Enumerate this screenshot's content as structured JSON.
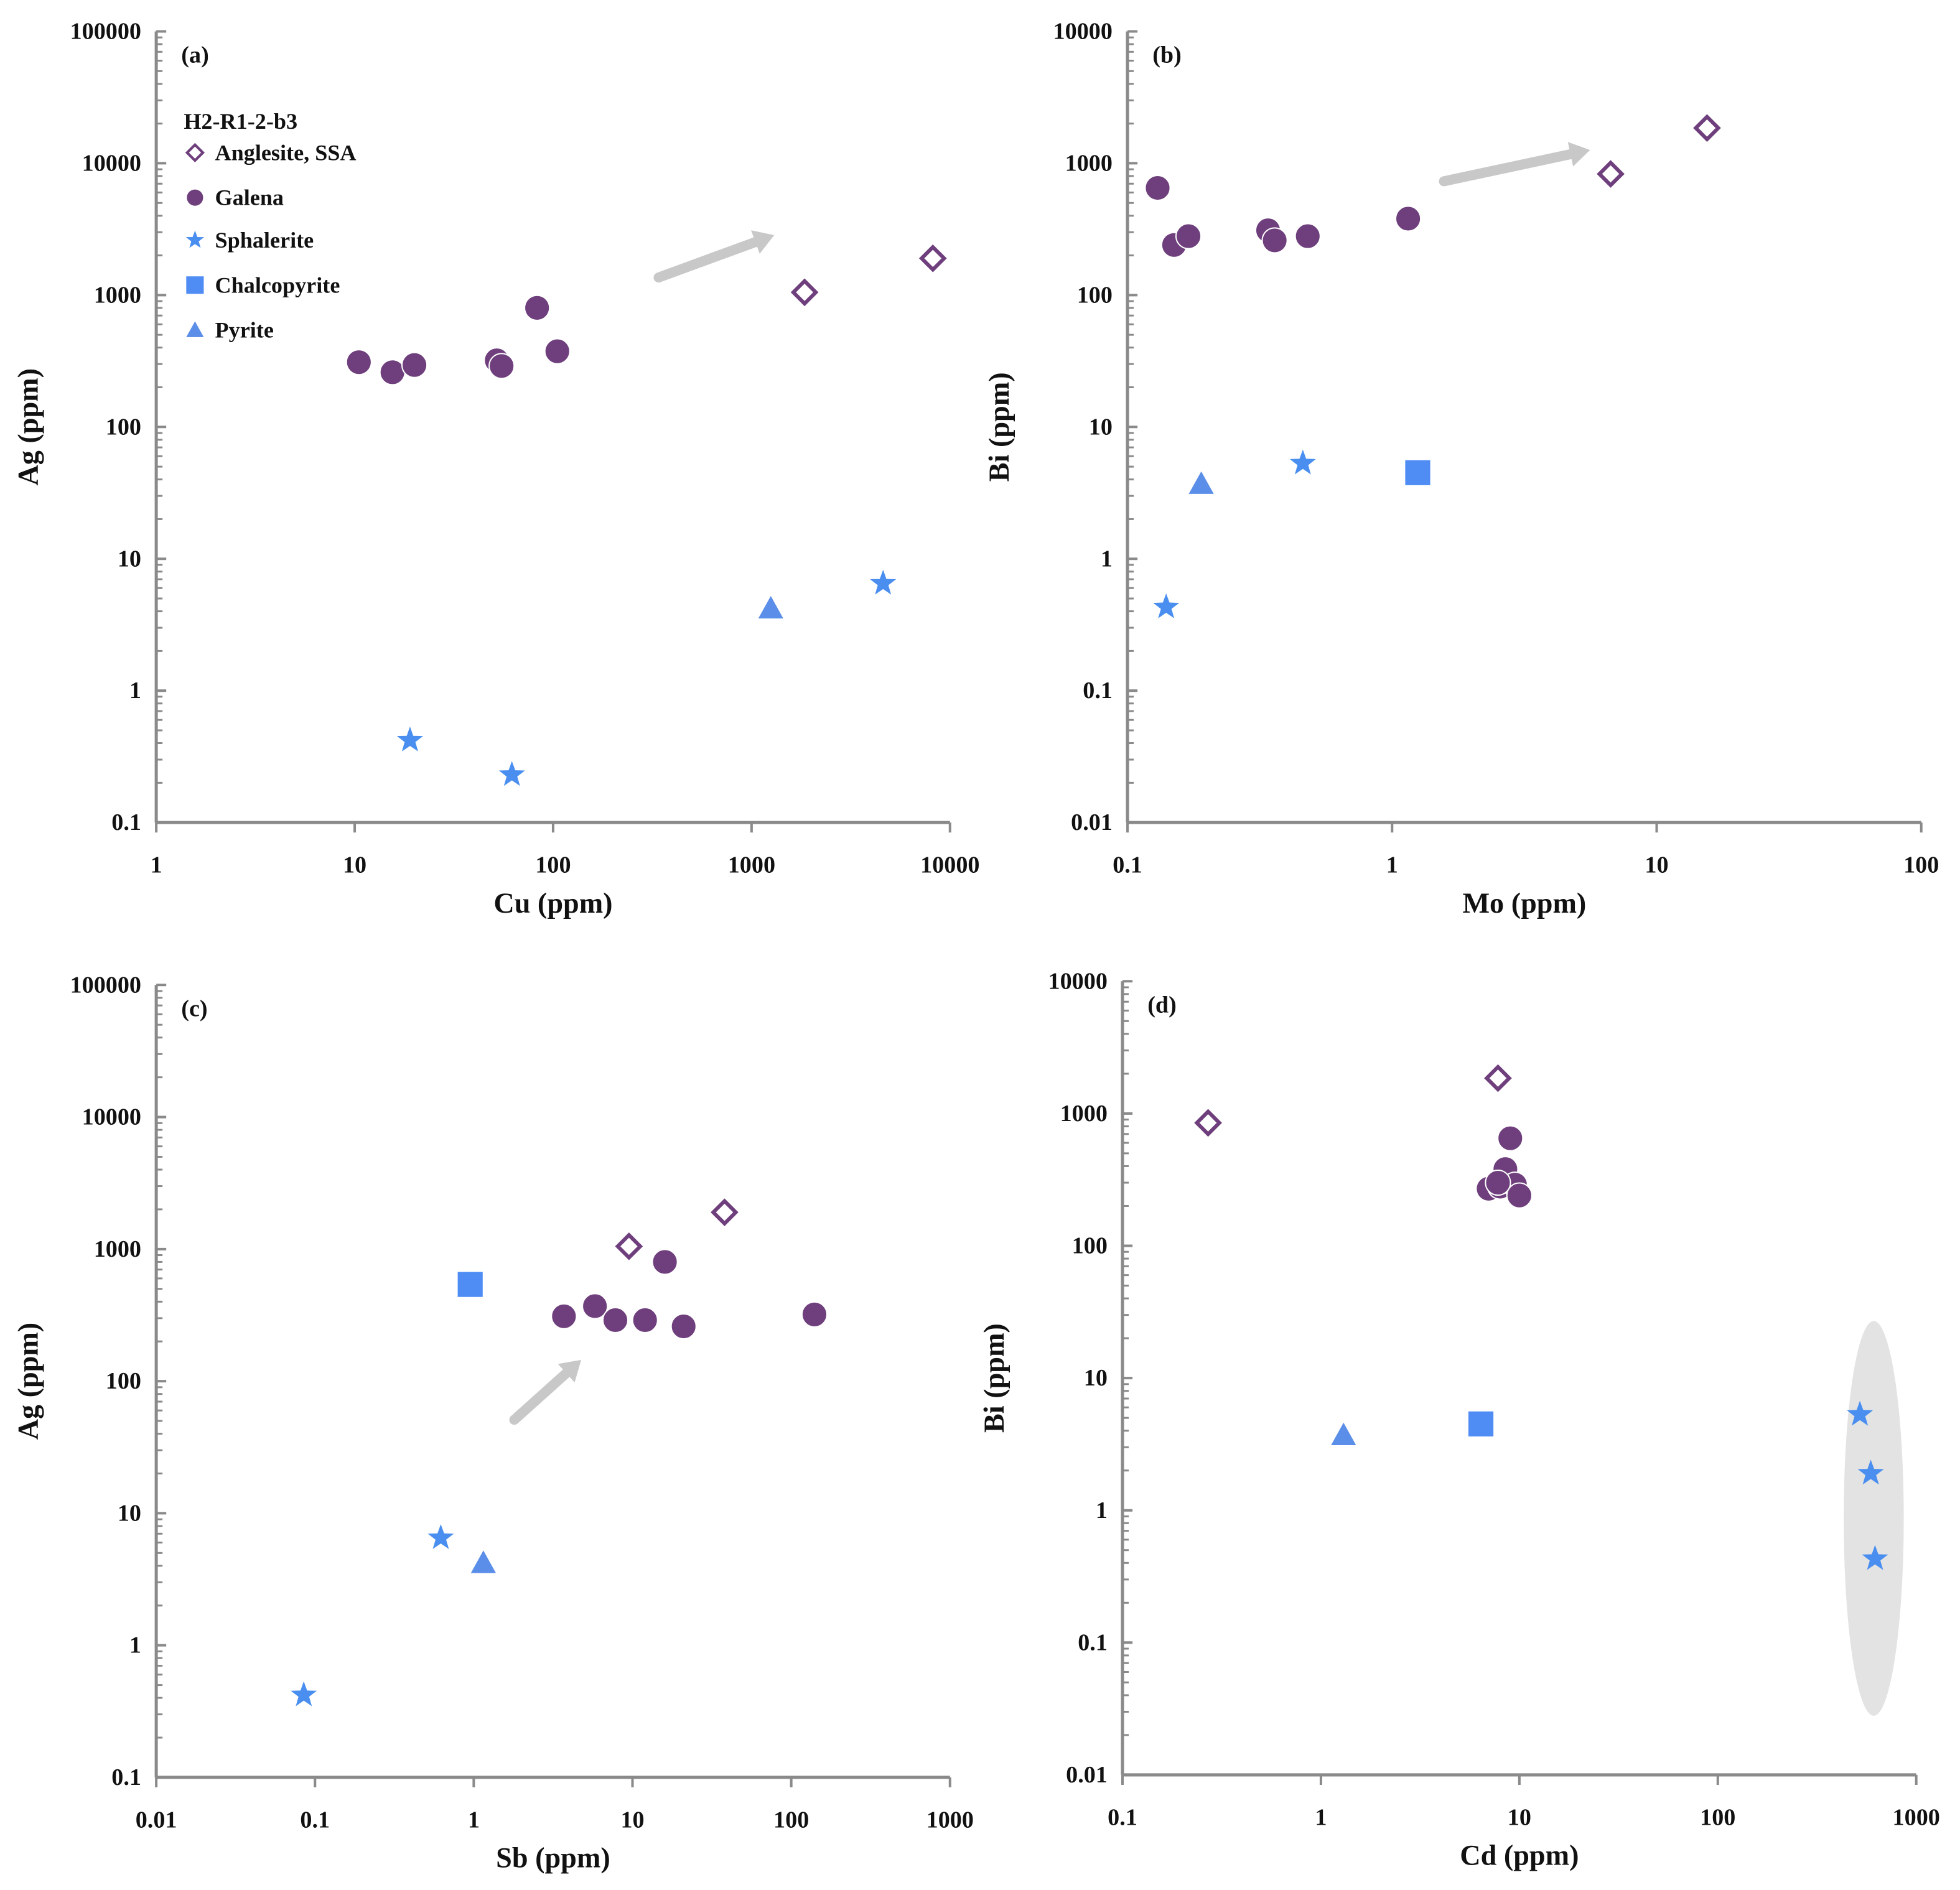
{
  "chart_data": [
    {
      "type": "scatter",
      "panel_label": "(a)",
      "xlabel": "Cu (ppm)",
      "ylabel": "Ag (ppm)",
      "xscale": "log",
      "yscale": "log",
      "xlim": [
        1,
        10000
      ],
      "ylim": [
        0.1,
        100000
      ],
      "xticks": [
        "1",
        "10",
        "100",
        "1000",
        "10000"
      ],
      "yticks": [
        "0.1",
        "1",
        "10",
        "100",
        "1000",
        "10000",
        "100000"
      ],
      "legend": {
        "title": "H2-R1-2-b3",
        "placement": "top-left",
        "entries": [
          "Anglesite, SSA",
          "Galena",
          "Sphalerite",
          "Chalcopyrite",
          "Pyrite"
        ]
      },
      "series": [
        {
          "name": "Anglesite, SSA",
          "marker": "diamond-open",
          "x": [
            1850,
            8200
          ],
          "y": [
            1050,
            1900
          ]
        },
        {
          "name": "Galena",
          "marker": "circle",
          "x": [
            10.5,
            15.5,
            20,
            52,
            55,
            83,
            105
          ],
          "y": [
            310,
            260,
            295,
            320,
            290,
            800,
            375
          ]
        },
        {
          "name": "Sphalerite",
          "marker": "star",
          "x": [
            19,
            62,
            4600
          ],
          "y": [
            0.42,
            0.23,
            6.5
          ]
        },
        {
          "name": "Chalcopyrite",
          "marker": "square",
          "x": [],
          "y": []
        },
        {
          "name": "Pyrite",
          "marker": "triangle",
          "x": [
            1250
          ],
          "y": [
            4.2
          ]
        }
      ],
      "annotations": [
        {
          "type": "arrow",
          "from": [
            340,
            1360
          ],
          "to": [
            1300,
            2850
          ]
        }
      ]
    },
    {
      "type": "scatter",
      "panel_label": "(b)",
      "xlabel": "Mo (ppm)",
      "ylabel": "Bi (ppm)",
      "xscale": "log",
      "yscale": "log",
      "xlim": [
        0.1,
        100
      ],
      "ylim": [
        0.01,
        10000
      ],
      "xticks": [
        "0.1",
        "1",
        "10",
        "100"
      ],
      "yticks": [
        "0.01",
        "0.1",
        "1",
        "10",
        "100",
        "1000",
        "10000"
      ],
      "series": [
        {
          "name": "Anglesite, SSA",
          "marker": "diamond-open",
          "x": [
            6.7,
            15.5
          ],
          "y": [
            830,
            1850
          ]
        },
        {
          "name": "Galena",
          "marker": "circle",
          "x": [
            0.13,
            0.15,
            0.17,
            0.34,
            0.36,
            0.48,
            1.15
          ],
          "y": [
            650,
            240,
            280,
            310,
            260,
            280,
            380
          ]
        },
        {
          "name": "Sphalerite",
          "marker": "star",
          "x": [
            0.14,
            0.46
          ],
          "y": [
            0.43,
            5.3
          ]
        },
        {
          "name": "Chalcopyrite",
          "marker": "square",
          "x": [
            1.25
          ],
          "y": [
            4.5
          ]
        },
        {
          "name": "Pyrite",
          "marker": "triangle",
          "x": [
            0.19
          ],
          "y": [
            3.7
          ]
        }
      ],
      "annotations": [
        {
          "type": "arrow",
          "from": [
            1.57,
            730
          ],
          "to": [
            5.6,
            1260
          ]
        }
      ]
    },
    {
      "type": "scatter",
      "panel_label": "(c)",
      "xlabel": "Sb (ppm)",
      "ylabel": "Ag (ppm)",
      "xscale": "log",
      "yscale": "log",
      "xlim": [
        0.01,
        1000
      ],
      "ylim": [
        0.1,
        100000
      ],
      "xticks": [
        "0.01",
        "0.1",
        "1",
        "10",
        "100",
        "1000"
      ],
      "yticks": [
        "0.1",
        "1",
        "10",
        "100",
        "1000",
        "10000",
        "100000"
      ],
      "series": [
        {
          "name": "Anglesite, SSA",
          "marker": "diamond-open",
          "x": [
            9.5,
            38
          ],
          "y": [
            1050,
            1900
          ]
        },
        {
          "name": "Galena",
          "marker": "circle",
          "x": [
            3.7,
            5.8,
            7.8,
            12,
            21,
            16,
            140
          ],
          "y": [
            310,
            370,
            290,
            290,
            260,
            800,
            320
          ]
        },
        {
          "name": "Sphalerite",
          "marker": "star",
          "x": [
            0.085,
            0.62
          ],
          "y": [
            0.42,
            6.5
          ]
        },
        {
          "name": "Chalcopyrite",
          "marker": "square",
          "x": [
            0.95
          ],
          "y": [
            540
          ]
        },
        {
          "name": "Pyrite",
          "marker": "triangle",
          "x": [
            1.15
          ],
          "y": [
            4.2
          ]
        }
      ],
      "annotations": [
        {
          "type": "arrow",
          "from": [
            1.8,
            51
          ],
          "to": [
            4.75,
            145
          ]
        }
      ]
    },
    {
      "type": "scatter",
      "panel_label": "(d)",
      "xlabel": "Cd (ppm)",
      "ylabel": "Bi (ppm)",
      "xscale": "log",
      "yscale": "log",
      "xlim": [
        0.1,
        1000
      ],
      "ylim": [
        0.01,
        10000
      ],
      "xticks": [
        "0.1",
        "1",
        "10",
        "100",
        "1000"
      ],
      "yticks": [
        "0.01",
        "0.1",
        "1",
        "10",
        "100",
        "1000",
        "10000"
      ],
      "series": [
        {
          "name": "Anglesite, SSA",
          "marker": "diamond-open",
          "x": [
            0.27,
            7.8
          ],
          "y": [
            850,
            1850
          ]
        },
        {
          "name": "Galena",
          "marker": "circle",
          "x": [
            9,
            8.5,
            7,
            8,
            9.5,
            10,
            7.8
          ],
          "y": [
            650,
            380,
            270,
            280,
            290,
            240,
            300
          ]
        },
        {
          "name": "Sphalerite",
          "marker": "star",
          "x": [
            520,
            590,
            620
          ],
          "y": [
            5.3,
            1.9,
            0.43
          ]
        },
        {
          "name": "Chalcopyrite",
          "marker": "square",
          "x": [
            6.4
          ],
          "y": [
            4.5
          ]
        },
        {
          "name": "Pyrite",
          "marker": "triangle",
          "x": [
            1.3
          ],
          "y": [
            3.7
          ]
        }
      ],
      "annotations": [
        {
          "type": "ellipse",
          "x_range": [
            431,
            865
          ],
          "y_range": [
            0.028,
            27
          ]
        }
      ]
    }
  ],
  "colors": {
    "purple": "#6e3f7c",
    "sphalerite": "#4a8ff0",
    "chalcopyrite": "#4f8df5",
    "pyrite": "#5a8ee8",
    "axis": "#8a8a8a",
    "arrow": "#c8c8c8",
    "ellipse": "#e3e3e3"
  }
}
